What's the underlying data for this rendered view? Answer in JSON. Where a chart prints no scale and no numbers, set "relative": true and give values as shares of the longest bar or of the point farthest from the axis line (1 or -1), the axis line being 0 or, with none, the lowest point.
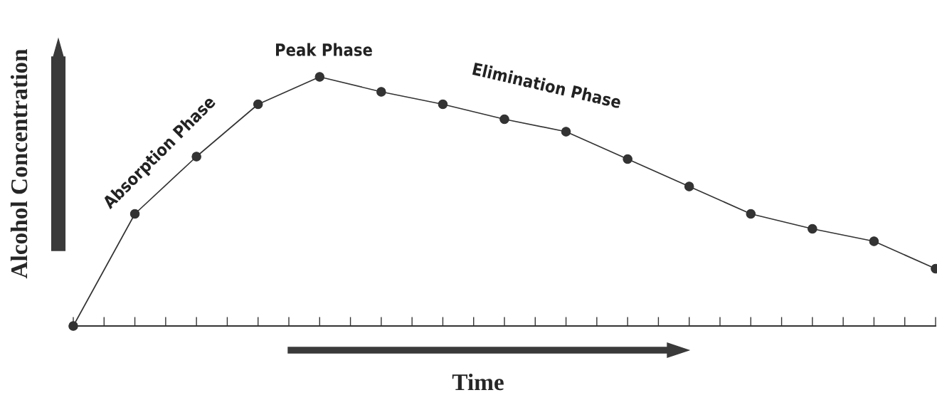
{
  "chart_data": {
    "type": "line",
    "relative": true,
    "categories": [
      null,
      null,
      null,
      null,
      null,
      null,
      null,
      null,
      null,
      null,
      null,
      null,
      null,
      null,
      null
    ],
    "series": [
      {
        "color": "#333333",
        "values": [
          0,
          0.45,
          0.68,
          0.89,
          1,
          0.94,
          0.89,
          0.83,
          0.78,
          0.67,
          0.56,
          0.45,
          0.39,
          0.34,
          0.23
        ]
      }
    ],
    "marker": "circle",
    "line_style": "solid",
    "grid": false,
    "legend": false,
    "xlabel": "Time",
    "ylabel": "Alcohol Concentration",
    "annotations": [
      "Absorption Phase",
      "Peak Phase",
      "Elimination Phase"
    ]
  }
}
